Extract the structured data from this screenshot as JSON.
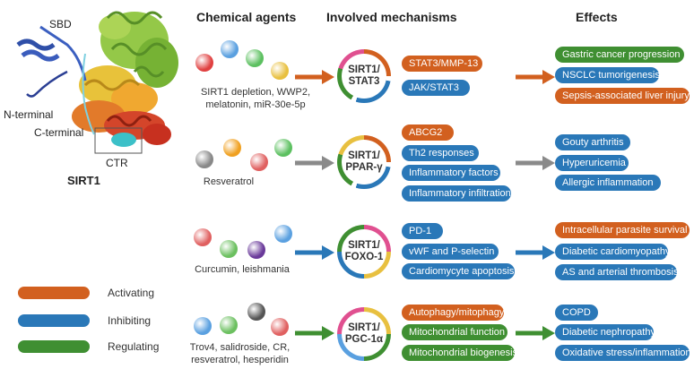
{
  "headers": {
    "chemical": "Chemical agents",
    "mechanisms": "Involved mechanisms",
    "effects": "Effects"
  },
  "protein": {
    "sbd": "SBD",
    "n_terminal": "N-terminal",
    "c_terminal": "C-terminal",
    "ctr": "CTR",
    "name": "SIRT1"
  },
  "rows": [
    {
      "agents_line1": "SIRT1 depletion, WWP2,",
      "agents_line2": "melatonin, miR-30e-5p",
      "mech_line1": "SIRT1/",
      "mech_line2": "STAT3",
      "arrow_color": "#d2601f",
      "mid": [
        {
          "label": "STAT3/MMP-13",
          "type": "org"
        },
        {
          "label": "JAK/STAT3",
          "type": "blu"
        }
      ],
      "effects": [
        {
          "label": "Gastric cancer progression",
          "type": "grn"
        },
        {
          "label": "NSCLC tumorigenesis",
          "type": "blu"
        },
        {
          "label": "Sepsis-associated liver injury",
          "type": "org"
        }
      ]
    },
    {
      "agents_line1": "Resveratrol",
      "agents_line2": "",
      "mech_line1": "SIRT1/",
      "mech_line2": "PPAR-γ",
      "arrow_color": "#8a8a8a",
      "mid": [
        {
          "label": "ABCG2",
          "type": "org"
        },
        {
          "label": "Th2 responses",
          "type": "blu"
        },
        {
          "label": "Inflammatory factors",
          "type": "blu"
        },
        {
          "label": "Inflammatory infiltration",
          "type": "blu"
        }
      ],
      "effects": [
        {
          "label": "Gouty arthritis",
          "type": "blu"
        },
        {
          "label": "Hyperuricemia",
          "type": "blu"
        },
        {
          "label": "Allergic inflammation",
          "type": "blu"
        }
      ]
    },
    {
      "agents_line1": "Curcumin, leishmania",
      "agents_line2": "",
      "mech_line1": "SIRT1/",
      "mech_line2": "FOXO-1",
      "arrow_color": "#2a78b8",
      "mid": [
        {
          "label": "PD-1",
          "type": "blu"
        },
        {
          "label": "vWF and P-selectin",
          "type": "blu"
        },
        {
          "label": "Cardiomycyte apoptosis",
          "type": "blu"
        }
      ],
      "effects": [
        {
          "label": "Intracellular parasite survival",
          "type": "org"
        },
        {
          "label": "Diabetic cardiomyopathy",
          "type": "blu"
        },
        {
          "label": "AS and arterial thrombosis",
          "type": "blu"
        }
      ]
    },
    {
      "agents_line1": "Trov4, salidroside, CR,",
      "agents_line2": "resveratrol, hesperidin",
      "mech_line1": "SIRT1/",
      "mech_line2": "PGC-1α",
      "arrow_color": "#3f8f32",
      "mid": [
        {
          "label": "Autophagy/mitophagy",
          "type": "org"
        },
        {
          "label": "Mitochondrial function",
          "type": "grn"
        },
        {
          "label": "Mitochondrial biogenesis",
          "type": "grn"
        }
      ],
      "effects": [
        {
          "label": "COPD",
          "type": "blu"
        },
        {
          "label": "Diabetic nephropathy",
          "type": "blu"
        },
        {
          "label": "Oxidative stress/inflammation",
          "type": "blu"
        }
      ]
    }
  ],
  "legend": [
    {
      "label": "Activating",
      "color": "#d2601f"
    },
    {
      "label": "Inhibiting",
      "color": "#2a78b8"
    },
    {
      "label": "Regulating",
      "color": "#3f8f32"
    }
  ]
}
